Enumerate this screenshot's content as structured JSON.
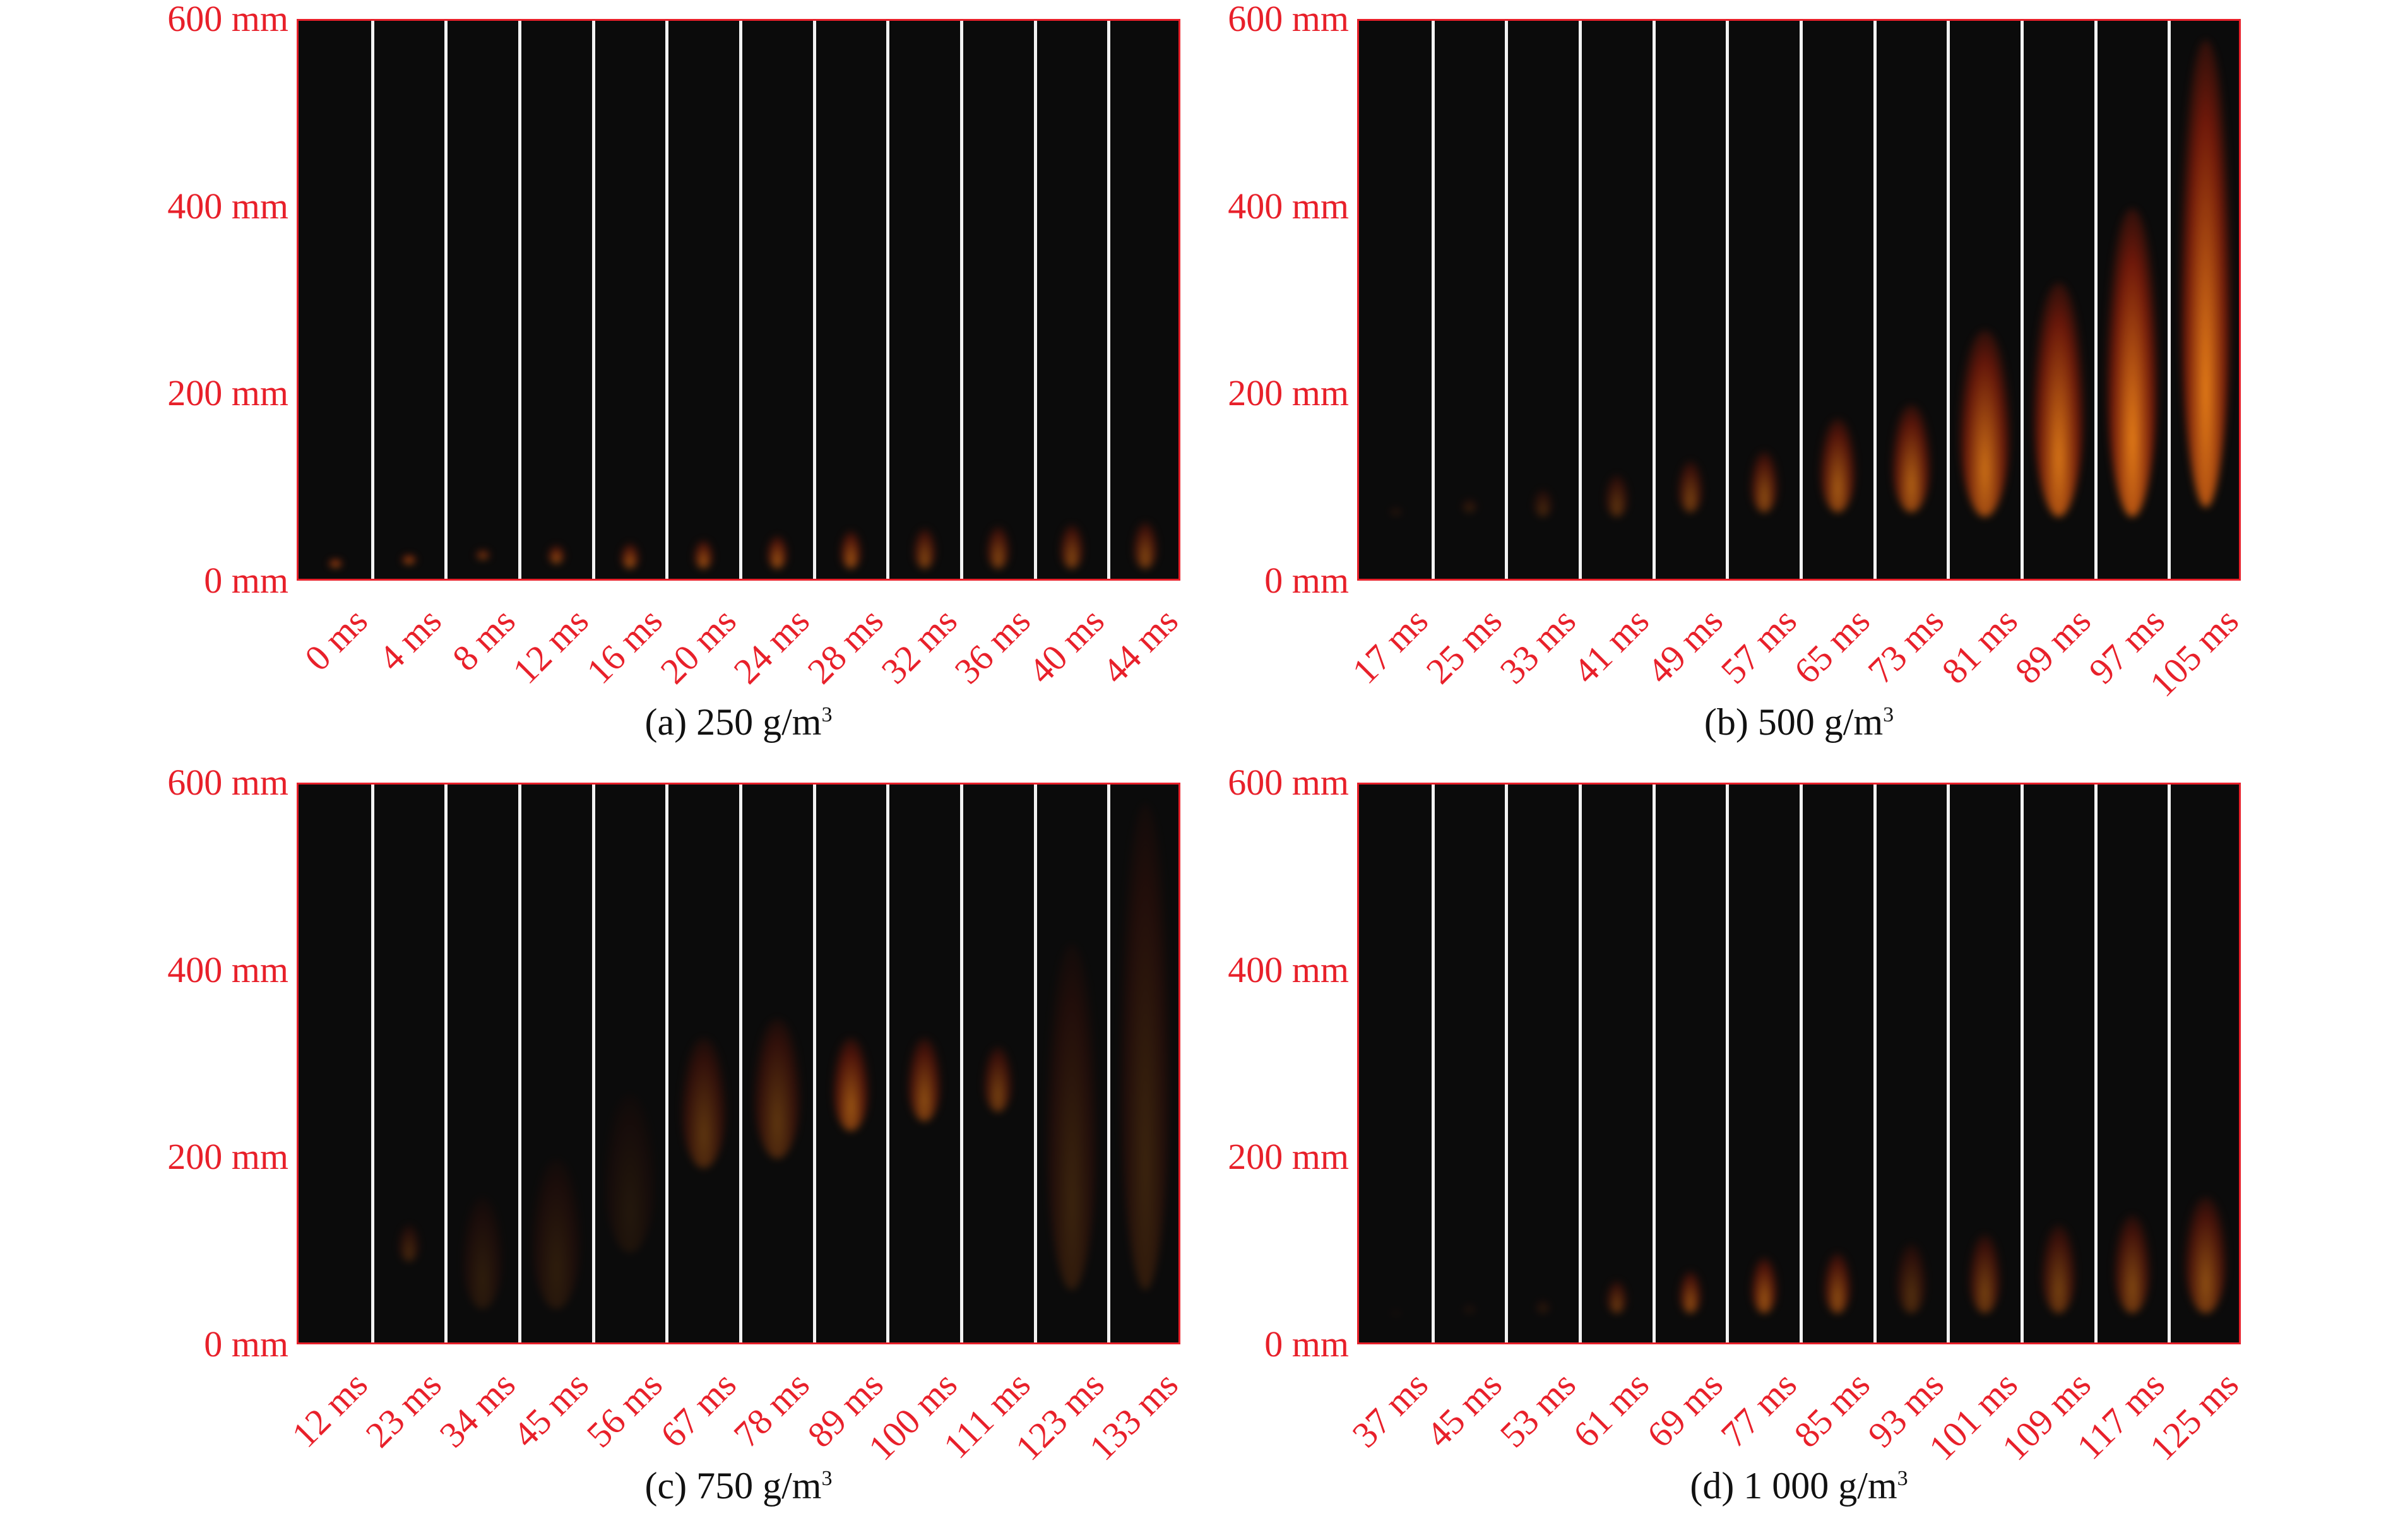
{
  "y_axis": {
    "ticks": [
      "600 mm",
      "400 mm",
      "200 mm",
      "0 mm"
    ],
    "max": 600
  },
  "colors": {
    "accent": "#e8202a",
    "background": "#0b0b0b",
    "separator": "#f2f2f2",
    "flame_hot": "#ff8c1a",
    "flame_dim": "#7a1a0a"
  },
  "panels": [
    {
      "id": "a",
      "caption_prefix": "(a) 250 g/m",
      "caption_sup": "3",
      "frames": [
        "0 ms",
        "4 ms",
        "8 ms",
        "12 ms",
        "16 ms",
        "20 ms",
        "24 ms",
        "28 ms",
        "32 ms",
        "36 ms",
        "40 ms",
        "44 ms"
      ],
      "flame_top_mm": [
        25,
        30,
        35,
        40,
        42,
        45,
        50,
        55,
        58,
        60,
        62,
        65
      ],
      "flame_base_mm": [
        20,
        20,
        25,
        20,
        15,
        15,
        15,
        15,
        15,
        15,
        15,
        15
      ],
      "intensity": [
        0.9,
        0.8,
        0.6,
        0.6,
        0.6,
        0.6,
        0.6,
        0.6,
        0.5,
        0.5,
        0.5,
        0.5
      ]
    },
    {
      "id": "b",
      "caption_prefix": "(b) 500 g/m",
      "caption_sup": "3",
      "frames": [
        "17 ms",
        "25 ms",
        "33 ms",
        "41 ms",
        "49 ms",
        "57 ms",
        "65 ms",
        "73 ms",
        "81 ms",
        "89 ms",
        "97 ms",
        "105 ms"
      ],
      "flame_top_mm": [
        80,
        90,
        100,
        115,
        130,
        140,
        175,
        190,
        270,
        320,
        400,
        580
      ],
      "flame_base_mm": [
        75,
        75,
        70,
        70,
        75,
        75,
        75,
        75,
        70,
        70,
        70,
        80
      ],
      "intensity": [
        0.15,
        0.2,
        0.25,
        0.35,
        0.45,
        0.55,
        0.65,
        0.7,
        0.8,
        0.85,
        0.9,
        0.9
      ]
    },
    {
      "id": "c",
      "caption_prefix": "(c) 750 g/m",
      "caption_sup": "3",
      "frames": [
        "12 ms",
        "23 ms",
        "34 ms",
        "45 ms",
        "56 ms",
        "67 ms",
        "78 ms",
        "89 ms",
        "100 ms",
        "111 ms",
        "123 ms",
        "133 ms"
      ],
      "flame_top_mm": [
        0,
        130,
        160,
        200,
        270,
        330,
        350,
        330,
        330,
        320,
        430,
        580
      ],
      "flame_base_mm": [
        0,
        90,
        40,
        40,
        100,
        190,
        200,
        230,
        240,
        250,
        60,
        60
      ],
      "intensity": [
        0.0,
        0.25,
        0.15,
        0.15,
        0.1,
        0.35,
        0.35,
        0.6,
        0.55,
        0.45,
        0.2,
        0.2
      ]
    },
    {
      "id": "d",
      "caption_prefix": "(d) 1 000 g/m",
      "caption_sup": "3",
      "frames": [
        "37 ms",
        "45 ms",
        "53 ms",
        "61 ms",
        "69 ms",
        "77 ms",
        "85 ms",
        "93 ms",
        "101 ms",
        "109 ms",
        "117 ms",
        "125 ms"
      ],
      "flame_top_mm": [
        40,
        45,
        50,
        70,
        80,
        95,
        100,
        110,
        120,
        130,
        140,
        160
      ],
      "flame_base_mm": [
        35,
        35,
        35,
        35,
        35,
        35,
        35,
        35,
        35,
        35,
        35,
        35
      ],
      "intensity": [
        0.05,
        0.1,
        0.15,
        0.4,
        0.55,
        0.6,
        0.55,
        0.3,
        0.45,
        0.45,
        0.5,
        0.55
      ]
    }
  ]
}
